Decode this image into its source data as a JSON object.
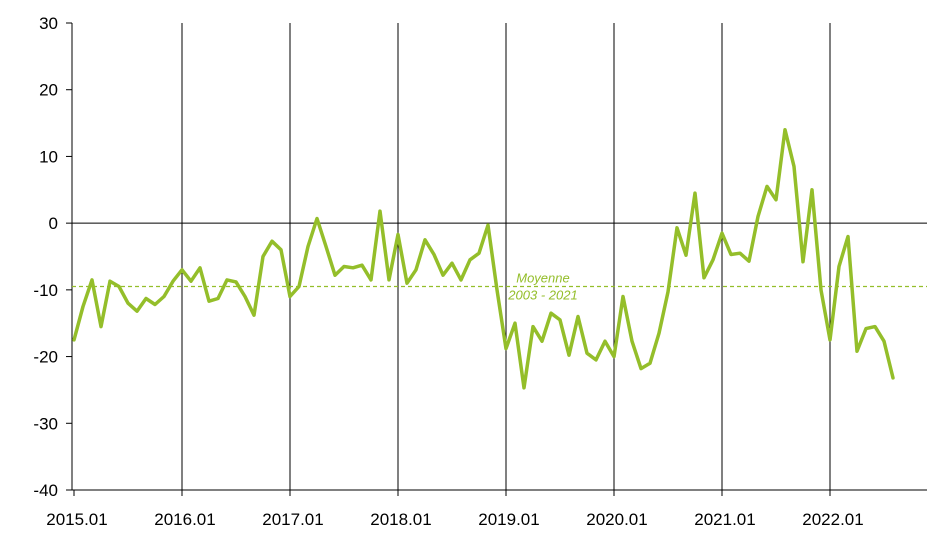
{
  "chart_data": {
    "type": "line",
    "title": "",
    "xlabel": "",
    "ylabel": "",
    "ylim": [
      -40,
      30
    ],
    "yticks": [
      "30",
      "20",
      "10",
      "0",
      "-10",
      "-20",
      "-30",
      "-40"
    ],
    "xtick_labels": [
      "2015.01",
      "2016.01",
      "2017.01",
      "2018.01",
      "2019.01",
      "2020.01",
      "2021.01",
      "2022.01"
    ],
    "grid": "vertical lines at each year start",
    "line_color": "#94BE2A",
    "reference_line": {
      "value": -9.5,
      "label_line1": "Moyenne",
      "label_line2": "2003 - 2021",
      "style": "dashed",
      "color": "#94BE2A"
    },
    "series": [
      {
        "name": "",
        "values": [
          -17.5,
          -12.5,
          -8.5,
          -15.5,
          -8.7,
          -9.5,
          -12,
          -13.2,
          -11.3,
          -12.2,
          -11,
          -8.7,
          -7,
          -8.7,
          -6.7,
          -11.7,
          -11.3,
          -8.5,
          -8.8,
          -11,
          -13.8,
          -5,
          -2.7,
          -4,
          -11,
          -9.5,
          -3.5,
          0.7,
          -3.5,
          -7.8,
          -6.5,
          -6.7,
          -6.3,
          -8.5,
          1.8,
          -8.5,
          -1.7,
          -9,
          -7,
          -2.5,
          -4.7,
          -7.8,
          -6,
          -8.5,
          -5.5,
          -4.5,
          -0.3,
          -10,
          -18.8,
          -15,
          -24.7,
          -15.5,
          -17.7,
          -13.5,
          -14.5,
          -19.8,
          -14,
          -19.5,
          -20.5,
          -17.7,
          -20,
          -11,
          -17.7,
          -21.8,
          -21,
          -16.5,
          -10.3,
          -0.7,
          -4.8,
          4.5,
          -8.2,
          -5.5,
          -1.5,
          -4.7,
          -4.5,
          -5.7,
          1,
          5.5,
          3.5,
          14,
          8.5,
          -5.8,
          5,
          -10,
          -17.5,
          -6.5,
          -2,
          -19.2,
          -15.8,
          -15.5,
          -17.7,
          -23.2
        ]
      }
    ]
  }
}
